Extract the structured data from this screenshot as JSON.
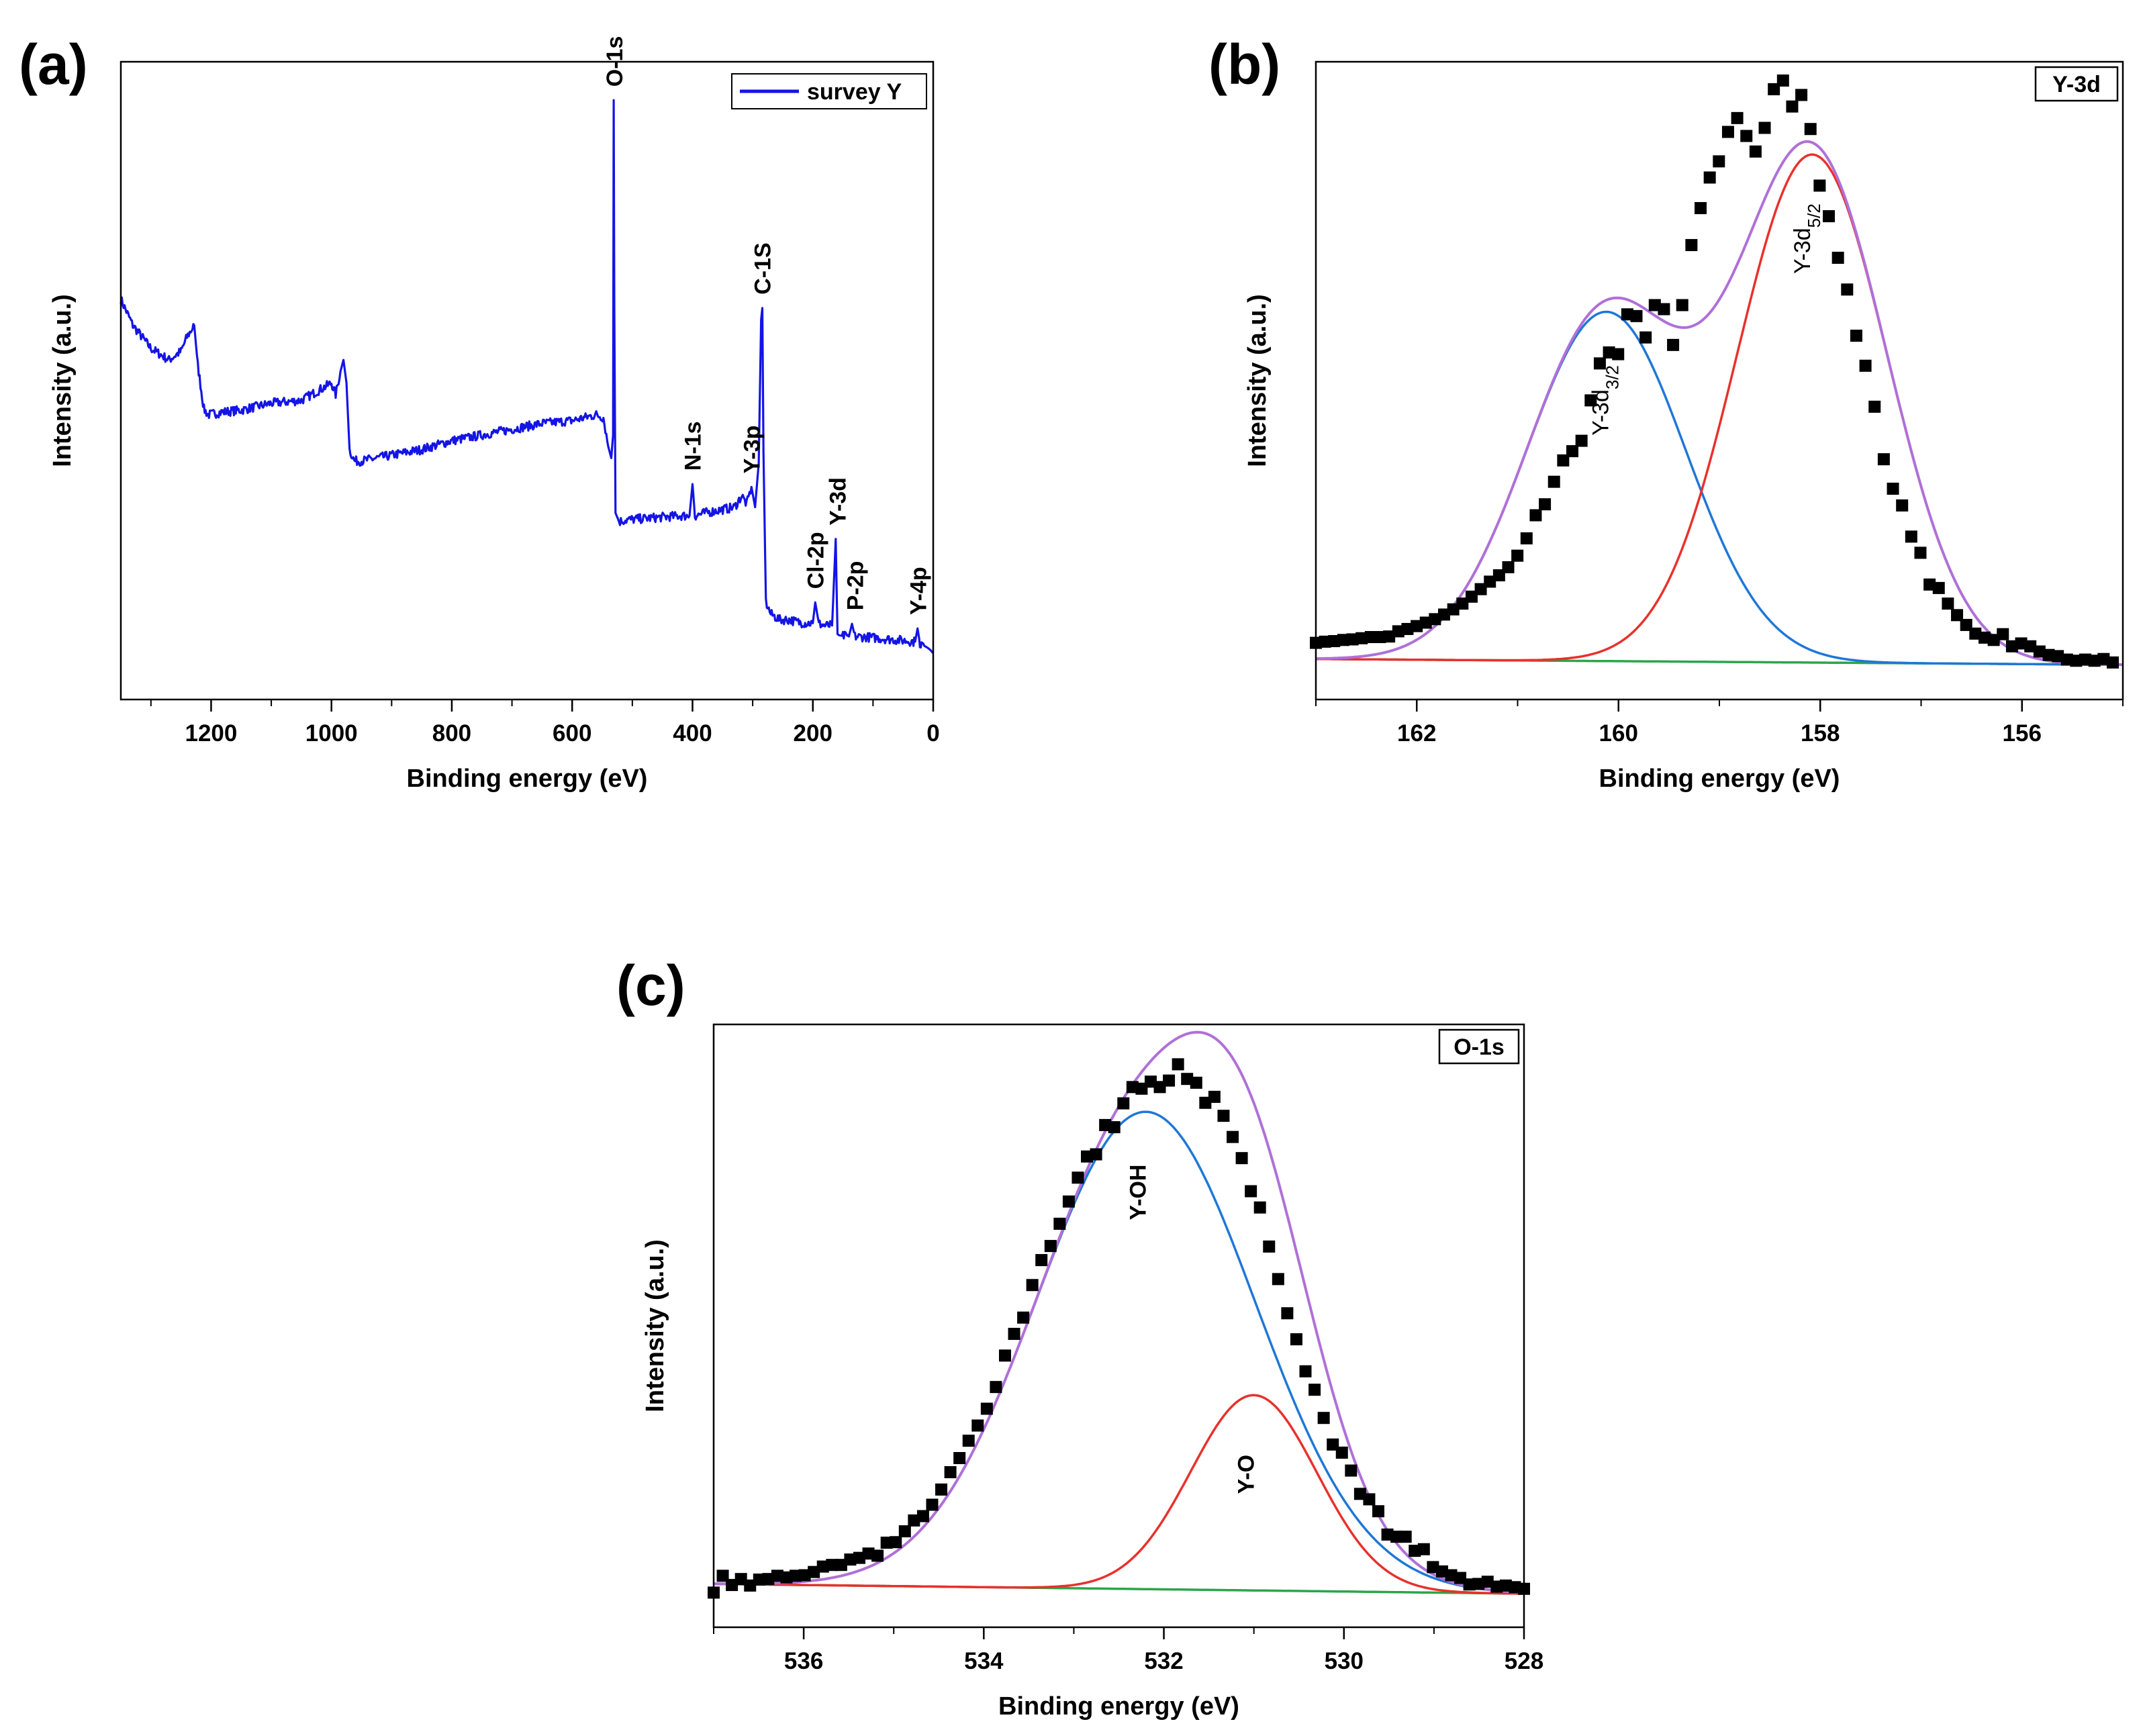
{
  "figure": {
    "colors": {
      "survey": "#1414e6",
      "points": "#000000",
      "envelope": "#b070d8",
      "comp_red": "#e8312c",
      "comp_blue": "#1f77d6",
      "baseline": "#2ca54a"
    }
  },
  "chart_data": [
    {
      "id": "a",
      "panel_label": "(a)",
      "type": "line",
      "xlabel": "Binding energy (eV)",
      "ylabel": "Intensity (a.u.)",
      "xlim": [
        1350,
        0
      ],
      "ylim": [
        0,
        100
      ],
      "x_ticks": [
        1200,
        1000,
        800,
        600,
        400,
        200,
        0
      ],
      "x_tick_labels": [
        "1200",
        "1000",
        "800",
        "600",
        "400",
        "200",
        "0"
      ],
      "legend": {
        "label": "survey Y",
        "position": "top-right"
      },
      "series": [
        {
          "name": "survey Y",
          "x": [
            1350,
            1330,
            1300,
            1270,
            1250,
            1240,
            1228,
            1222,
            1212,
            1205,
            1180,
            1150,
            1100,
            1050,
            1000,
            993,
            985,
            980,
            975,
            970,
            962,
            950,
            900,
            850,
            800,
            750,
            700,
            650,
            600,
            560,
            548,
            540,
            535,
            532,
            531,
            530,
            528,
            522,
            510,
            460,
            420,
            405,
            400,
            396,
            380,
            330,
            318,
            310,
            302,
            296,
            290,
            286,
            284,
            282,
            278,
            270,
            255,
            245,
            238,
            230,
            220,
            210,
            200,
            196,
            190,
            180,
            168,
            162,
            159,
            156,
            150,
            140,
            135,
            130,
            110,
            80,
            60,
            40,
            30,
            26,
            22,
            15,
            10,
            5,
            0
          ],
          "y": [
            63.5,
            59,
            55,
            53,
            54.5,
            57,
            59,
            52,
            44.5,
            43.5,
            44,
            44.3,
            45.5,
            46,
            49,
            47,
            51,
            53,
            49,
            37.5,
            35.5,
            35.5,
            36.5,
            37.5,
            39,
            40,
            41,
            42,
            42.5,
            43.5,
            43,
            38,
            36,
            40,
            98,
            62,
            26.5,
            25,
            25.3,
            25.7,
            26,
            26,
            31.5,
            26,
            26.5,
            27.5,
            29.5,
            28,
            31,
            27.5,
            35,
            60,
            62,
            37,
            11,
            9,
            8,
            8,
            8,
            7.7,
            7.5,
            7.4,
            7.4,
            11,
            7.3,
            7,
            7,
            22,
            5.5,
            5.3,
            5.2,
            5.1,
            7.3,
            5.1,
            5,
            4.7,
            4.5,
            4.3,
            4.2,
            6.5,
            3.9,
            3.5,
            3.2,
            2.8,
            2.2
          ]
        }
      ],
      "annotations": [
        {
          "text": "O-1s",
          "x": 530,
          "y": 98
        },
        {
          "text": "C-1S",
          "x": 284,
          "y": 62
        },
        {
          "text": "N-1s",
          "x": 400,
          "y": 31.5
        },
        {
          "text": "Y-3p",
          "x": 302,
          "y": 31
        },
        {
          "text": "Y-3d",
          "x": 159,
          "y": 22
        },
        {
          "text": "Cl-2p",
          "x": 196,
          "y": 11
        },
        {
          "text": "P-2p",
          "x": 130,
          "y": 7.3
        },
        {
          "text": "Y-4p",
          "x": 25,
          "y": 6.5
        }
      ]
    },
    {
      "id": "b",
      "panel_label": "(b)",
      "type": "scatter",
      "xlabel": "Binding energy (eV)",
      "ylabel": "Intensity (a.u.)",
      "xlim": [
        163,
        155
      ],
      "ylim": [
        0,
        100
      ],
      "x_ticks": [
        162,
        160,
        158,
        156
      ],
      "x_tick_labels": [
        "162",
        "160",
        "158",
        "156"
      ],
      "box_label": "Y-3d",
      "point_x_range": [
        163,
        155.1
      ],
      "points_y": [
        4.0,
        4.2,
        4.3,
        4.5,
        4.6,
        4.8,
        5.0,
        5.0,
        5.1,
        6.0,
        6.4,
        6.9,
        7.5,
        8.1,
        8.9,
        9.8,
        10.8,
        12.0,
        13.3,
        14.6,
        15.7,
        17.1,
        19.1,
        22.1,
        26.1,
        28.0,
        31.9,
        35.6,
        37.2,
        39.0,
        46.0,
        52.4,
        54.3,
        54.0,
        60.9,
        60.6,
        56.9,
        62.5,
        61.8,
        55.6,
        62.5,
        72.9,
        79.3,
        84.6,
        87.4,
        92.5,
        94.9,
        91.8,
        89.1,
        93.2,
        99.9,
        101.4,
        96.9,
        98.9,
        93.0,
        83.2,
        77.9,
        70.7,
        65.2,
        57.2,
        52.0,
        44.9,
        35.8,
        30.7,
        27.8,
        22.4,
        19.6,
        14.1,
        13.5,
        10.8,
        8.8,
        7.1,
        5.6,
        4.9,
        4.5,
        5.5,
        3.4,
        3.9,
        3.4,
        2.5,
        1.9,
        1.7,
        1.1,
        0.9,
        1.1,
        0.9,
        1.2,
        0.6
      ],
      "components": [
        {
          "name": "Y-3d3/2",
          "label_main": "Y-3d",
          "label_sub": "3/2",
          "color_key": "comp_blue",
          "center": 160.12,
          "fwhm": 1.85,
          "height": 60.5,
          "label_x": 160.1,
          "label_y": 46
        },
        {
          "name": "Y-3d5/2",
          "label_main": "Y-3d",
          "label_sub": "5/2",
          "color_key": "comp_red",
          "center": 158.08,
          "fwhm": 1.75,
          "height": 88.0,
          "label_x": 158.1,
          "label_y": 74
        }
      ],
      "baseline": {
        "start": [
          163,
          1.2
        ],
        "end": [
          155,
          0.2
        ]
      },
      "envelope": {
        "name": "envelope",
        "color_key": "envelope"
      }
    },
    {
      "id": "c",
      "panel_label": "(c)",
      "type": "scatter",
      "xlabel": "Binding energy (eV)",
      "ylabel": "Intensity (a.u.)",
      "xlim": [
        537,
        528
      ],
      "ylim": [
        0,
        100
      ],
      "x_ticks": [
        536,
        534,
        532,
        530,
        528
      ],
      "x_tick_labels": [
        "536",
        "534",
        "532",
        "530",
        "528"
      ],
      "box_label": "O-1s",
      "point_x_range": [
        537,
        528
      ],
      "points_y": [
        0.2,
        3.3,
        1.6,
        2.7,
        1.5,
        2.6,
        2.7,
        3.3,
        3.0,
        3.3,
        3.4,
        4.0,
        5.0,
        5.3,
        5.3,
        6.3,
        6.6,
        7.4,
        7.0,
        9.4,
        9.5,
        11.5,
        13.5,
        14.3,
        16.4,
        19.2,
        22.4,
        25.0,
        28.2,
        31.0,
        34.1,
        38.1,
        43.9,
        47.9,
        50.9,
        56.9,
        61.5,
        64.1,
        68.2,
        72.3,
        76.7,
        80.6,
        81.0,
        86.4,
        86.0,
        90.4,
        93.4,
        93.1,
        94.4,
        93.4,
        94.6,
        97.6,
        94.9,
        94.2,
        90.5,
        91.6,
        88.1,
        84.2,
        80.3,
        74.2,
        71.2,
        64.0,
        58.0,
        51.7,
        46.9,
        41.0,
        37.6,
        32.4,
        27.5,
        26.0,
        22.7,
        18.4,
        17.4,
        15.2,
        10.9,
        10.5,
        10.5,
        7.9,
        8.2,
        4.9,
        4.1,
        3.4,
        2.9,
        1.7,
        1.8,
        2.2,
        1.3,
        1.5,
        1.2,
        0.9
      ],
      "components": [
        {
          "name": "Y-OH",
          "label_main": "Y-OH",
          "label_sub": "",
          "color_key": "comp_blue",
          "center": 532.2,
          "fwhm": 2.85,
          "height": 88.0,
          "label_x": 532.2,
          "label_y": 74
        },
        {
          "name": "Y-O",
          "label_main": "Y-O",
          "label_sub": "",
          "color_key": "comp_red",
          "center": 531.0,
          "fwhm": 1.65,
          "height": 36.0,
          "label_x": 531.0,
          "label_y": 22
        }
      ],
      "baseline": {
        "start": [
          537,
          1.8
        ],
        "end": [
          528,
          0.0
        ]
      },
      "envelope": {
        "name": "envelope",
        "color_key": "envelope"
      }
    }
  ]
}
